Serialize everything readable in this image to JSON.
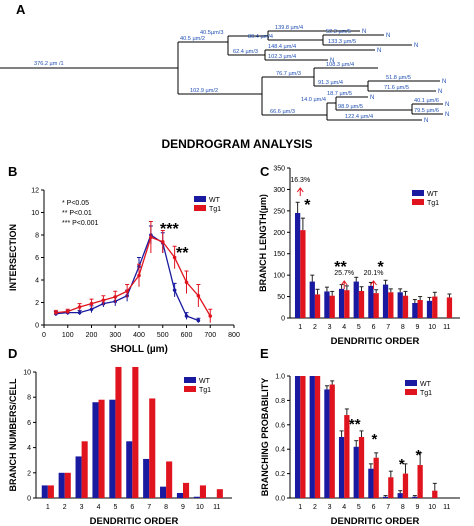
{
  "panel_a": {
    "letter": "A",
    "title": "DENDROGRAM ANALYSIS",
    "segment_labels": [
      "376.2 µm /1",
      "40.5 µm/2",
      "40.5µm/3",
      "139.8 µm/4",
      "80.4 µm/4",
      "52.3 µm/5",
      "133.3 µm/5",
      "62.4 µm/3",
      "148.4 µm/4",
      "102.3 µm/4",
      "102.9 µm/2",
      "76.7 µm/3",
      "108.3 µm/4",
      "91.3 µm/4",
      "51.8 µm/5",
      "71.6 µm/5",
      "14.0 µm/4",
      "18.7 µm/5",
      "98.9 µm/5",
      "40.1 µm/6",
      "79.5 µm/6",
      "66.6 µm/3",
      "122.4 µm/4"
    ],
    "end_label": "N"
  },
  "panels": {
    "b": "B",
    "c": "C",
    "d": "D",
    "e": "E"
  },
  "chart_data": [
    {
      "type": "line",
      "xlabel": "SHOLL (µm)",
      "ylabel": "INTERSECTION",
      "xlim": [
        0,
        800
      ],
      "ylim": [
        0,
        12
      ],
      "xticks": [
        "0",
        "100",
        "200",
        "300",
        "400",
        "500",
        "600",
        "700",
        "800"
      ],
      "yticks": [
        "0",
        "2",
        "4",
        "6",
        "8",
        "10",
        "12"
      ],
      "legend": [
        "WT",
        "Tg1"
      ],
      "legend_position": "top-right",
      "significance_legend": [
        "*   P<0.05",
        "**  P<0.01",
        "***  P<0.001"
      ],
      "annotations": [
        "***",
        "**"
      ],
      "colors": {
        "WT": "#1a1aa0",
        "Tg1": "#e0141e"
      },
      "series": [
        {
          "name": "WT",
          "x": [
            50,
            100,
            150,
            200,
            250,
            300,
            350,
            400,
            450,
            500,
            550,
            600,
            650
          ],
          "y": [
            1.0,
            1.1,
            1.1,
            1.4,
            1.9,
            2.1,
            2.6,
            5.2,
            8.0,
            7.3,
            3.1,
            0.8,
            0.4
          ],
          "err": [
            0.2,
            0.2,
            0.2,
            0.3,
            0.3,
            0.4,
            0.5,
            0.8,
            0.8,
            0.9,
            0.6,
            0.3,
            0.2
          ]
        },
        {
          "name": "Tg1",
          "x": [
            50,
            100,
            150,
            200,
            250,
            300,
            350,
            400,
            450,
            500,
            550,
            600,
            650,
            700
          ],
          "y": [
            1.1,
            1.2,
            1.6,
            1.9,
            2.2,
            2.5,
            3.0,
            4.4,
            7.8,
            7.4,
            6.0,
            3.8,
            2.6,
            0.8
          ],
          "err": [
            0.2,
            0.2,
            0.3,
            0.4,
            0.4,
            0.5,
            0.6,
            1.0,
            1.4,
            1.0,
            1.0,
            1.0,
            1.0,
            0.6
          ]
        }
      ]
    },
    {
      "type": "bar",
      "xlabel": "DENDRITIC ORDER",
      "ylabel": "BRANCH LENGTH(µm)",
      "ylim": [
        0,
        350
      ],
      "categories": [
        "1",
        "2",
        "3",
        "4",
        "5",
        "6",
        "7",
        "8",
        "9",
        "10",
        "11"
      ],
      "yticks": [
        "0",
        "50",
        "100",
        "150",
        "200",
        "250",
        "300",
        "350"
      ],
      "legend": [
        "WT",
        "Tg1"
      ],
      "legend_position": "top-right",
      "percent_labels": [
        "16.3%",
        "25.7%",
        "20.1%"
      ],
      "annotations": [
        "*",
        "**",
        "*"
      ],
      "colors": {
        "WT": "#1a1aa0",
        "Tg1": "#e0141e"
      },
      "series": [
        {
          "name": "WT",
          "values": [
            245,
            85,
            62,
            68,
            85,
            75,
            78,
            60,
            35,
            40,
            null
          ],
          "err": [
            25,
            15,
            10,
            10,
            10,
            8,
            10,
            8,
            8,
            8,
            null
          ]
        },
        {
          "name": "Tg1",
          "values": [
            205,
            55,
            52,
            65,
            63,
            58,
            60,
            52,
            42,
            50,
            48
          ],
          "err": [
            28,
            12,
            10,
            10,
            10,
            8,
            8,
            10,
            8,
            10,
            8
          ]
        }
      ]
    },
    {
      "type": "bar",
      "xlabel": "DENDRITIC ORDER",
      "ylabel": "BRANCH NUMBERS/CELL",
      "ylim": [
        0,
        10
      ],
      "categories": [
        "1",
        "2",
        "3",
        "4",
        "5",
        "6",
        "7",
        "8",
        "9",
        "10",
        "11"
      ],
      "yticks": [
        "0",
        "2",
        "4",
        "6",
        "8",
        "10"
      ],
      "legend": [
        "WT",
        "Tg1"
      ],
      "legend_position": "top-right",
      "colors": {
        "WT": "#1a1aa0",
        "Tg1": "#e0141e"
      },
      "series": [
        {
          "name": "WT",
          "values": [
            1.0,
            2.0,
            3.3,
            7.6,
            7.8,
            4.5,
            3.1,
            0.9,
            0.4,
            0.1,
            0.0
          ]
        },
        {
          "name": "Tg1",
          "values": [
            1.0,
            2.0,
            4.5,
            7.8,
            10.4,
            10.4,
            7.9,
            2.9,
            1.2,
            1.0,
            0.7
          ]
        }
      ]
    },
    {
      "type": "bar",
      "xlabel": "DENDRITIC ORDER",
      "ylabel": "BRANCHING PROBABILITY",
      "ylim": [
        0,
        1.0
      ],
      "categories": [
        "1",
        "2",
        "3",
        "4",
        "5",
        "6",
        "7",
        "8",
        "9",
        "10",
        "11"
      ],
      "yticks": [
        "0.0",
        "0.2",
        "0.4",
        "0.6",
        "0.8",
        "1.0"
      ],
      "legend": [
        "WT",
        "Tg1"
      ],
      "legend_position": "top-right",
      "annotations": [
        "**",
        "*",
        "*",
        "*"
      ],
      "colors": {
        "WT": "#1a1aa0",
        "Tg1": "#e0141e"
      },
      "series": [
        {
          "name": "WT",
          "values": [
            1.0,
            1.0,
            0.89,
            0.5,
            0.42,
            0.24,
            0.01,
            0.04,
            0.01,
            null,
            null
          ],
          "err": [
            0,
            0,
            0.03,
            0.05,
            0.05,
            0.04,
            0.01,
            0.02,
            0.01,
            null,
            null
          ]
        },
        {
          "name": "Tg1",
          "values": [
            1.0,
            1.0,
            0.93,
            0.68,
            0.5,
            0.33,
            0.17,
            0.2,
            0.27,
            0.06,
            null
          ],
          "err": [
            0,
            0,
            0.03,
            0.05,
            0.05,
            0.04,
            0.05,
            0.08,
            0.1,
            0.06,
            null
          ]
        }
      ]
    }
  ]
}
